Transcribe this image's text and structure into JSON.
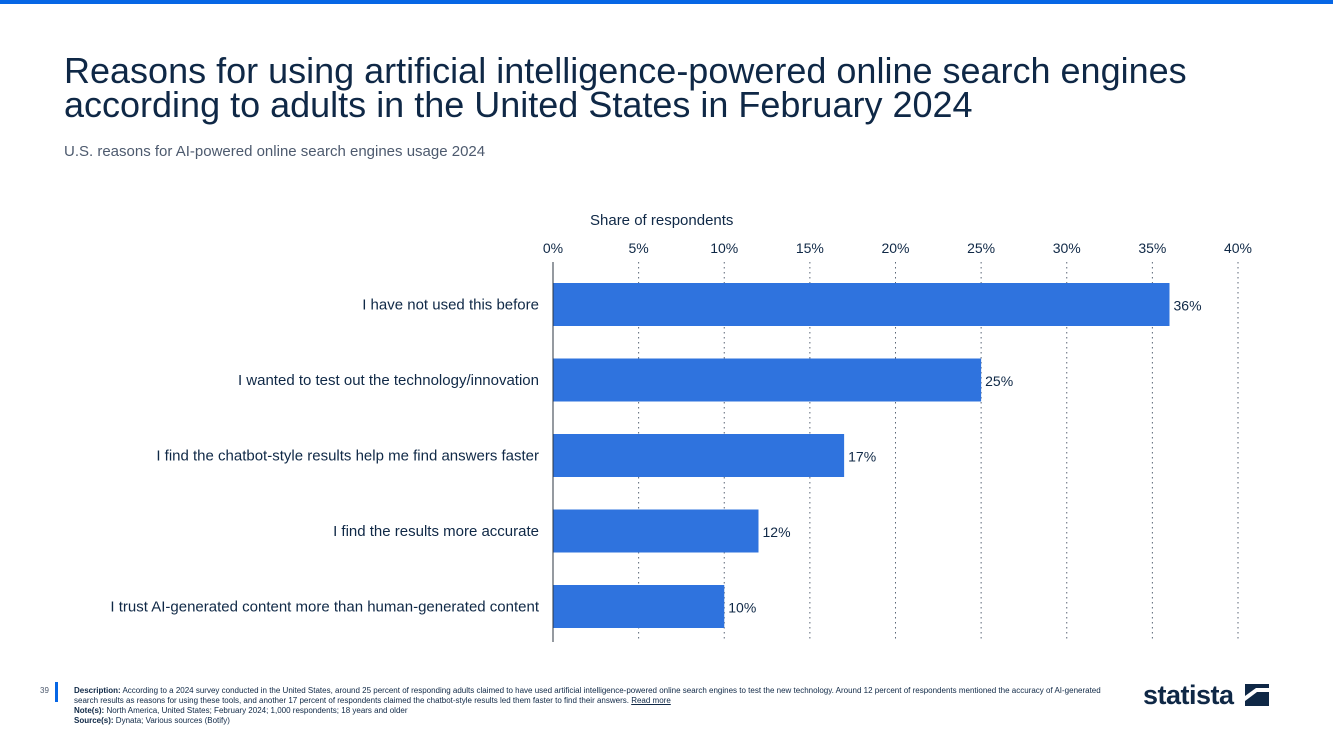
{
  "header": {
    "title": "Reasons for using artificial intelligence-powered online search engines according to adults in the United States in February 2024",
    "subtitle": "U.S. reasons for AI-powered online search engines usage 2024"
  },
  "colors": {
    "accent": "#0666e5",
    "bar": "#2f73de",
    "text": "#0f2846"
  },
  "chart_data": {
    "type": "bar",
    "orientation": "horizontal",
    "xlabel": "Share of respondents",
    "xlim": [
      0,
      40
    ],
    "xticks": [
      "0%",
      "5%",
      "10%",
      "15%",
      "20%",
      "25%",
      "30%",
      "35%",
      "40%"
    ],
    "grid": "vertical-dotted",
    "categories": [
      "I have not used this before",
      "I wanted to test out the technology/innovation",
      "I find the chatbot-style results help me find answers faster",
      "I find the results more accurate",
      "I trust AI-generated content more than human-generated content"
    ],
    "values": [
      36,
      25,
      17,
      12,
      10
    ],
    "value_labels": [
      "36%",
      "25%",
      "17%",
      "12%",
      "10%"
    ]
  },
  "footer": {
    "page_number": "39",
    "description_label": "Description:",
    "description": "According to a 2024 survey conducted in the United States, around 25 percent of responding adults claimed to have used artificial intelligence-powered online search engines to test the new technology. Around 12 percent of respondents mentioned the accuracy of AI-generated search results as reasons for using these tools, and another 17 percent of respondents claimed the chatbot-style results led them faster to find their answers.",
    "read_more": "Read more",
    "notes_label": "Note(s):",
    "notes": "North America, United States; February 2024; 1,000 respondents; 18 years and older",
    "source_label": "Source(s):",
    "source": "Dynata; Various sources (Botify)",
    "logo": "statista",
    "logo_icon": "statista-logo-icon"
  }
}
